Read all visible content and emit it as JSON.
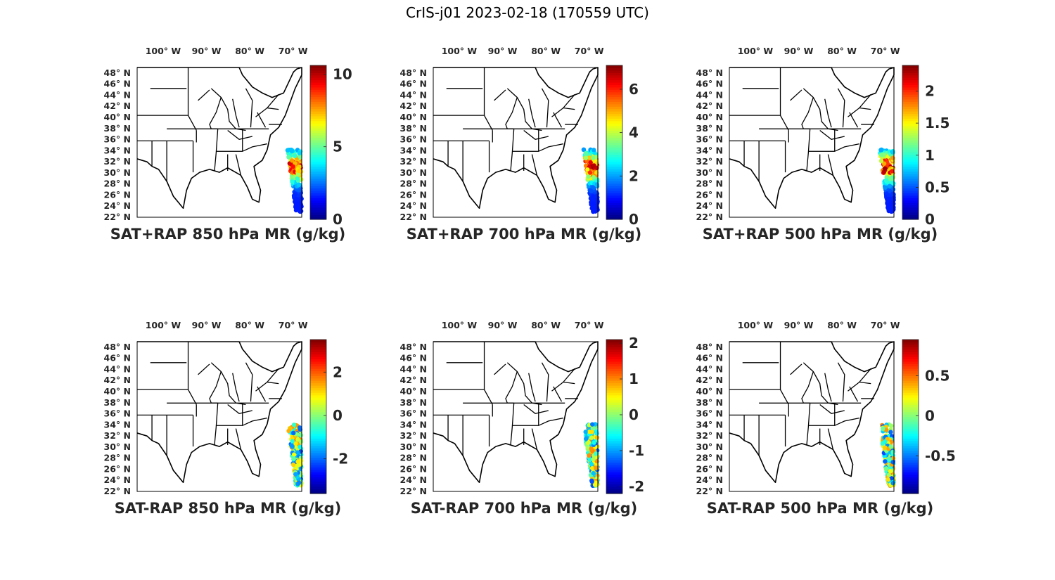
{
  "figure": {
    "title": "CrIS-j01 2023-02-18 (170559 UTC)",
    "lon_ticks": [
      "100",
      "90",
      "80",
      "70"
    ],
    "lon_hemisphere": "W",
    "lat_ticks": [
      "48",
      "46",
      "44",
      "42",
      "40",
      "38",
      "36",
      "34",
      "32",
      "30",
      "28",
      "26",
      "24",
      "22"
    ],
    "lat_hemisphere": "N",
    "degree_symbol": "°",
    "colormap": "jet",
    "map_extent": {
      "lon": [
        -106,
        -68
      ],
      "lat": [
        22,
        49
      ]
    },
    "panels": [
      {
        "title": "SAT+RAP 850 hPa MR (g/kg)",
        "colorbar": {
          "min": 0,
          "max": 10.6,
          "ticks": [
            "0",
            "5",
            "10"
          ],
          "tick_values": [
            0,
            5,
            10
          ]
        }
      },
      {
        "title": "SAT+RAP 700 hPa MR (g/kg)",
        "colorbar": {
          "min": 0,
          "max": 7.1,
          "ticks": [
            "0",
            "2",
            "4",
            "6"
          ],
          "tick_values": [
            0,
            2,
            4,
            6
          ]
        }
      },
      {
        "title": "SAT+RAP 500 hPa MR (g/kg)",
        "colorbar": {
          "min": 0,
          "max": 2.4,
          "ticks": [
            "0",
            "0.5",
            "1",
            "1.5",
            "2"
          ],
          "tick_values": [
            0,
            0.5,
            1,
            1.5,
            2
          ]
        }
      },
      {
        "title": "SAT-RAP 850 hPa MR (g/kg)",
        "colorbar": {
          "min": -3.6,
          "max": 3.5,
          "ticks": [
            "-2",
            "0",
            "2"
          ],
          "tick_values": [
            -2,
            0,
            2
          ]
        }
      },
      {
        "title": "SAT-RAP 700 hPa MR (g/kg)",
        "colorbar": {
          "min": -2.2,
          "max": 2.1,
          "ticks": [
            "-2",
            "-1",
            "0",
            "1",
            "2"
          ],
          "tick_values": [
            -2,
            -1,
            0,
            1,
            2
          ]
        }
      },
      {
        "title": "SAT-RAP 500 hPa MR (g/kg)",
        "colorbar": {
          "min": -0.97,
          "max": 0.95,
          "ticks": [
            "-0.5",
            "0",
            "0.5"
          ],
          "tick_values": [
            -0.5,
            0,
            0.5
          ]
        }
      }
    ]
  }
}
